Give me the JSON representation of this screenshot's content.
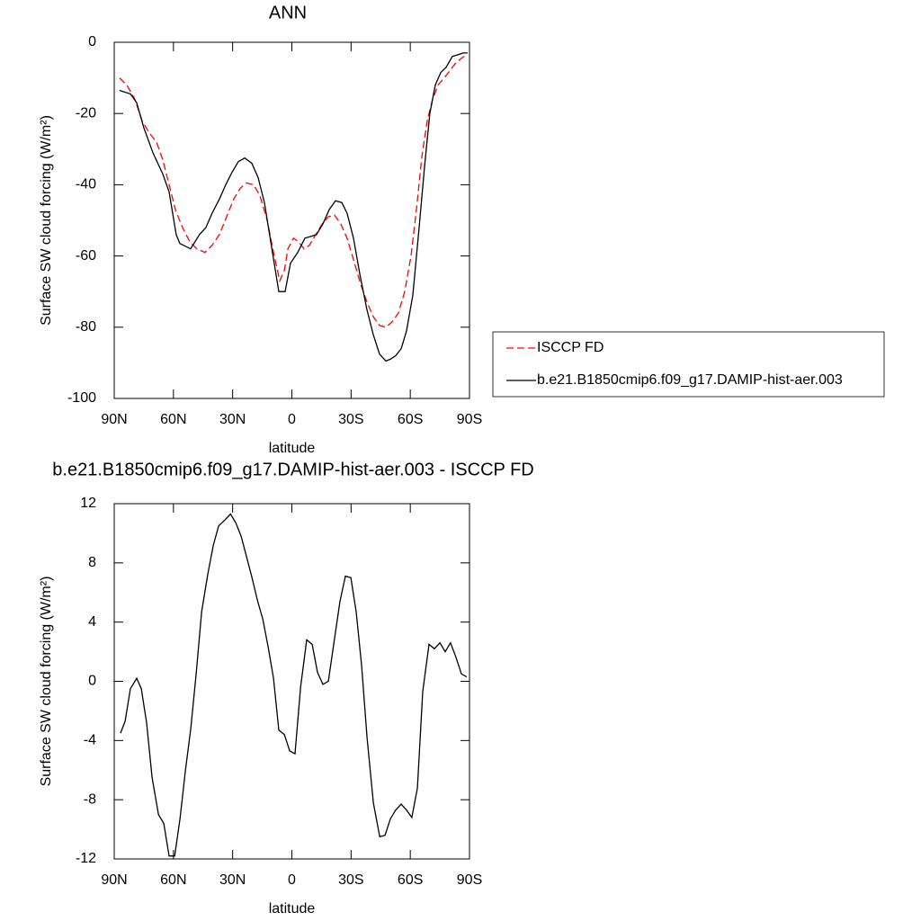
{
  "chart_data": [
    {
      "type": "line",
      "title": "ANN",
      "xlabel": "latitude",
      "ylabel": "Surface SW cloud forcing (W/m²)",
      "xlim": [
        90,
        -90
      ],
      "xticks": [
        {
          "value": 90,
          "label": "90N"
        },
        {
          "value": 60,
          "label": "60N"
        },
        {
          "value": 30,
          "label": "30N"
        },
        0,
        {
          "value": -30,
          "label": "30S"
        },
        {
          "value": -60,
          "label": "60S"
        },
        {
          "value": -90,
          "label": "90S"
        }
      ],
      "ylim": [
        -100,
        0
      ],
      "yticks": [
        -100,
        -80,
        -60,
        -40,
        -20,
        0
      ],
      "legend": "outside-right",
      "series": [
        {
          "name": "ISCCP FD",
          "color": "#ff0000",
          "style": "dashed",
          "x": [
            87.3,
            83.6,
            79.5,
            75.9,
            72.2,
            68.6,
            65.4,
            62.2,
            59,
            55.4,
            51.7,
            48.1,
            44,
            40.4,
            36.7,
            33.1,
            29.4,
            26.2,
            23,
            19.4,
            16.2,
            12.5,
            9.3,
            6.1,
            3.8,
            2,
            -0.8,
            -3.4,
            -6.2,
            -8.9,
            -12.1,
            -15.3,
            -18.5,
            -21.6,
            -24.8,
            -28,
            -31.2,
            -34.9,
            -38.1,
            -41.2,
            -44.4,
            -47.6,
            -50.8,
            -54,
            -57.2,
            -60.4,
            -63.1,
            -65.9,
            -68.6,
            -71.3,
            -74.1,
            -77.2,
            -80,
            -82.7,
            -85.9,
            -88.6
          ],
          "values": [
            -10,
            -12,
            -16,
            -22,
            -25.5,
            -28,
            -33,
            -40,
            -47,
            -52,
            -56,
            -58,
            -59,
            -57,
            -54,
            -49,
            -44,
            -41,
            -39.5,
            -40,
            -43,
            -50,
            -59,
            -67,
            -64,
            -58,
            -55,
            -56,
            -58,
            -57,
            -54,
            -51,
            -49,
            -48.5,
            -51,
            -55,
            -61,
            -68,
            -73,
            -77,
            -79.5,
            -80,
            -78.5,
            -76,
            -70,
            -60,
            -47,
            -32,
            -22,
            -16,
            -12,
            -10,
            -8,
            -6,
            -4.5,
            -3.5
          ]
        },
        {
          "name": "b.e21.B1850cmip6.f09_g17.DAMIP-hist-aer.003",
          "color": "#000000",
          "style": "solid",
          "x": [
            87.3,
            81.8,
            78.6,
            75,
            70.4,
            65.4,
            62.2,
            58.6,
            56.8,
            51.3,
            46.8,
            43.5,
            40.4,
            36.7,
            33.5,
            30.3,
            27.1,
            23.9,
            20.3,
            17.1,
            13.9,
            10.7,
            6.6,
            3.4,
            0.7,
            -3,
            -6.6,
            -9.8,
            -12.5,
            -15.7,
            -18.9,
            -22.1,
            -25.3,
            -28,
            -31.2,
            -34.4,
            -38,
            -41.2,
            -44.4,
            -47.6,
            -49.9,
            -52.6,
            -55.4,
            -58.1,
            -61.3,
            -64.5,
            -67.2,
            -69.9,
            -72.7,
            -75.4,
            -78.2,
            -81.3,
            -84.1,
            -86.8,
            -89.1
          ],
          "values": [
            -13.5,
            -14.5,
            -17,
            -24,
            -31,
            -37,
            -42,
            -54,
            -56.5,
            -58,
            -54,
            -52,
            -48,
            -44,
            -40,
            -36.5,
            -33.5,
            -32.5,
            -34,
            -38,
            -45,
            -56,
            -70,
            -70,
            -62,
            -59,
            -55,
            -54.5,
            -54,
            -51,
            -47,
            -44.5,
            -45,
            -48,
            -55,
            -65,
            -75,
            -82,
            -87.5,
            -89.5,
            -89,
            -88,
            -86,
            -81,
            -71,
            -52,
            -35,
            -20,
            -12,
            -8.5,
            -7,
            -4,
            -3.5,
            -3,
            -3
          ]
        }
      ]
    },
    {
      "type": "line",
      "title": "b.e21.B1850cmip6.f09_g17.DAMIP-hist-aer.003 - ISCCP FD",
      "xlabel": "latitude",
      "ylabel": "Surface SW cloud forcing (W/m²)",
      "xlim": [
        90,
        -90
      ],
      "xticks": [
        {
          "value": 90,
          "label": "90N"
        },
        {
          "value": 60,
          "label": "60N"
        },
        {
          "value": 30,
          "label": "30N"
        },
        0,
        {
          "value": -30,
          "label": "30S"
        },
        {
          "value": -60,
          "label": "60S"
        },
        {
          "value": -90,
          "label": "90S"
        }
      ],
      "ylim": [
        -12,
        12
      ],
      "yticks": [
        -12,
        -8,
        -4,
        0,
        4,
        8,
        12
      ],
      "series": [
        {
          "color": "#000000",
          "style": "solid",
          "x": [
            86.8,
            84.5,
            81.8,
            78.6,
            76.3,
            73.6,
            70.8,
            67.6,
            64.9,
            62.2,
            59.4,
            56.7,
            53.9,
            51.2,
            48.5,
            45.7,
            42.5,
            39.8,
            37.1,
            33.9,
            31.1,
            28.4,
            25.7,
            22.9,
            20.2,
            17.5,
            14.7,
            12,
            9.3,
            6.6,
            3.8,
            1.1,
            -1.6,
            -4.4,
            -7.5,
            -10.3,
            -13,
            -15.7,
            -18.5,
            -21.2,
            -24.4,
            -27.1,
            -29.9,
            -32.6,
            -35.3,
            -38.1,
            -41.3,
            -44.5,
            -47.2,
            -49.9,
            -52.6,
            -55.4,
            -58.1,
            -60.8,
            -63.6,
            -66.3,
            -69.5,
            -72.2,
            -75,
            -77.7,
            -80.4,
            -83.2,
            -85.9,
            -88.6
          ],
          "values": [
            -3.5,
            -2.7,
            -0.5,
            0.2,
            -0.5,
            -2.8,
            -6.5,
            -9,
            -9.6,
            -11.8,
            -11.8,
            -9.3,
            -6,
            -3.2,
            0.5,
            4.7,
            7.3,
            9.2,
            10.5,
            10.9,
            11.3,
            10.7,
            9.8,
            8.4,
            7,
            5.5,
            4.2,
            2.3,
            0.2,
            -3.3,
            -3.6,
            -4.7,
            -4.9,
            -0.4,
            2.8,
            2.5,
            0.6,
            -0.2,
            0,
            2.5,
            5.4,
            7.1,
            7,
            4.7,
            1.1,
            -3.8,
            -8.2,
            -10.5,
            -10.4,
            -9.3,
            -8.7,
            -8.3,
            -8.7,
            -9.2,
            -7.2,
            -0.7,
            2.5,
            2.2,
            2.6,
            2,
            2.6,
            1.6,
            0.5,
            0.3
          ]
        }
      ]
    }
  ]
}
